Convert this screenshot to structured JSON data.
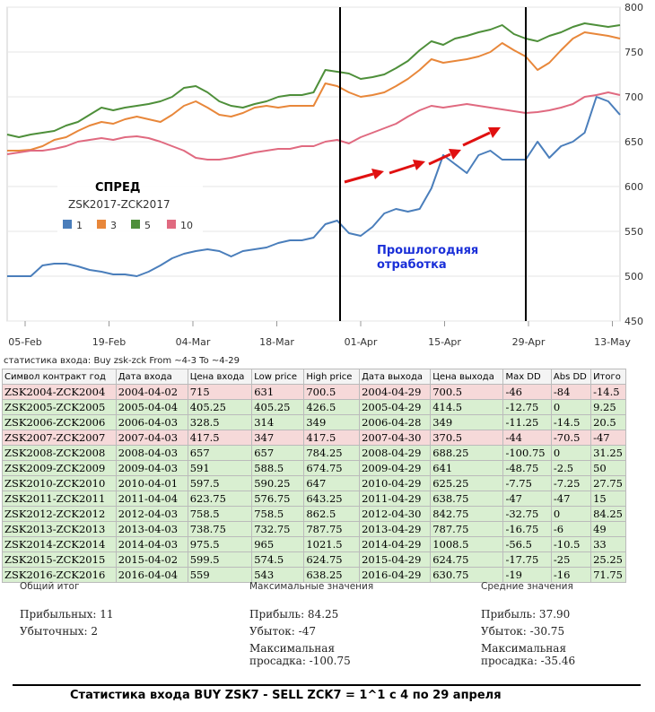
{
  "chart_data": {
    "type": "line",
    "x_labels": [
      "05-Feb",
      "19-Feb",
      "04-Mar",
      "18-Mar",
      "01-Apr",
      "15-Apr",
      "29-Apr",
      "13-May"
    ],
    "ylim": [
      450,
      800
    ],
    "yticks": [
      450,
      500,
      550,
      600,
      650,
      700,
      750,
      800
    ],
    "legend_title": "СПРЕД",
    "legend_subtitle": "ZSK2017-ZCK2017",
    "annotation": "Прошлогодняя отработка",
    "annotation_lines": [
      "Прошлогодняя",
      "отработка"
    ],
    "series": [
      {
        "name": "1",
        "color": "#4a7ebb",
        "values": [
          500,
          500,
          500,
          512,
          514,
          514,
          511,
          507,
          505,
          502,
          502,
          500,
          505,
          512,
          520,
          525,
          528,
          530,
          528,
          522,
          528,
          530,
          532,
          537,
          540,
          540,
          543,
          558,
          562,
          548,
          545,
          555,
          570,
          575,
          572,
          575,
          598,
          635,
          625,
          615,
          635,
          640,
          630,
          630,
          630,
          650,
          632,
          645,
          650,
          660,
          700,
          695,
          680
        ]
      },
      {
        "name": "3",
        "color": "#e8873a",
        "values": [
          640,
          640,
          641,
          645,
          652,
          655,
          662,
          668,
          672,
          670,
          675,
          678,
          675,
          672,
          680,
          690,
          695,
          688,
          680,
          678,
          682,
          688,
          690,
          688,
          690,
          690,
          690,
          715,
          712,
          705,
          700,
          702,
          705,
          712,
          720,
          730,
          742,
          738,
          740,
          742,
          745,
          750,
          760,
          752,
          745,
          730,
          738,
          752,
          765,
          772,
          770,
          768,
          765
        ]
      },
      {
        "name": "5",
        "color": "#4e8f3a",
        "values": [
          658,
          655,
          658,
          660,
          662,
          668,
          672,
          680,
          688,
          685,
          688,
          690,
          692,
          695,
          700,
          710,
          712,
          705,
          695,
          690,
          688,
          692,
          695,
          700,
          702,
          702,
          705,
          730,
          728,
          726,
          720,
          722,
          725,
          732,
          740,
          752,
          762,
          758,
          765,
          768,
          772,
          775,
          780,
          770,
          765,
          762,
          768,
          772,
          778,
          782,
          780,
          778,
          780
        ]
      },
      {
        "name": "10",
        "color": "#e06a80",
        "values": [
          636,
          638,
          640,
          640,
          642,
          645,
          650,
          652,
          654,
          652,
          655,
          656,
          654,
          650,
          645,
          640,
          632,
          630,
          630,
          632,
          635,
          638,
          640,
          642,
          642,
          645,
          645,
          650,
          652,
          648,
          655,
          660,
          665,
          670,
          678,
          685,
          690,
          688,
          690,
          692,
          690,
          688,
          686,
          684,
          682,
          683,
          685,
          688,
          692,
          700,
          702,
          705,
          702
        ]
      }
    ]
  },
  "stats_title": "статистика входа: Buy zsk-zck From ~4-3 To ~4-29",
  "table": {
    "headers": [
      "Символ контракт год",
      "Дата входа",
      "Цена входа",
      "Low price",
      "High price",
      "Дата выхода",
      "Цена выхода",
      "Max DD",
      "Abs DD",
      "Итого"
    ],
    "rows": [
      {
        "status": "loss",
        "cells": [
          "ZSK2004-ZCK2004",
          "2004-04-02",
          "715",
          "631",
          "700.5",
          "2004-04-29",
          "700.5",
          "-46",
          "-84",
          "-14.5"
        ]
      },
      {
        "status": "win",
        "cells": [
          "ZSK2005-ZCK2005",
          "2005-04-04",
          "405.25",
          "405.25",
          "426.5",
          "2005-04-29",
          "414.5",
          "-12.75",
          "0",
          "9.25"
        ]
      },
      {
        "status": "win",
        "cells": [
          "ZSK2006-ZCK2006",
          "2006-04-03",
          "328.5",
          "314",
          "349",
          "2006-04-28",
          "349",
          "-11.25",
          "-14.5",
          "20.5"
        ]
      },
      {
        "status": "loss",
        "cells": [
          "ZSK2007-ZCK2007",
          "2007-04-03",
          "417.5",
          "347",
          "417.5",
          "2007-04-30",
          "370.5",
          "-44",
          "-70.5",
          "-47"
        ]
      },
      {
        "status": "win",
        "cells": [
          "ZSK2008-ZCK2008",
          "2008-04-03",
          "657",
          "657",
          "784.25",
          "2008-04-29",
          "688.25",
          "-100.75",
          "0",
          "31.25"
        ]
      },
      {
        "status": "win",
        "cells": [
          "ZSK2009-ZCK2009",
          "2009-04-03",
          "591",
          "588.5",
          "674.75",
          "2009-04-29",
          "641",
          "-48.75",
          "-2.5",
          "50"
        ]
      },
      {
        "status": "win",
        "cells": [
          "ZSK2010-ZCK2010",
          "2010-04-01",
          "597.5",
          "590.25",
          "647",
          "2010-04-29",
          "625.25",
          "-7.75",
          "-7.25",
          "27.75"
        ]
      },
      {
        "status": "win",
        "cells": [
          "ZSK2011-ZCK2011",
          "2011-04-04",
          "623.75",
          "576.75",
          "643.25",
          "2011-04-29",
          "638.75",
          "-47",
          "-47",
          "15"
        ]
      },
      {
        "status": "win",
        "cells": [
          "ZSK2012-ZCK2012",
          "2012-04-03",
          "758.5",
          "758.5",
          "862.5",
          "2012-04-30",
          "842.75",
          "-32.75",
          "0",
          "84.25"
        ]
      },
      {
        "status": "win",
        "cells": [
          "ZSK2013-ZCK2013",
          "2013-04-03",
          "738.75",
          "732.75",
          "787.75",
          "2013-04-29",
          "787.75",
          "-16.75",
          "-6",
          "49"
        ]
      },
      {
        "status": "win",
        "cells": [
          "ZSK2014-ZCK2014",
          "2014-04-03",
          "975.5",
          "965",
          "1021.5",
          "2014-04-29",
          "1008.5",
          "-56.5",
          "-10.5",
          "33"
        ]
      },
      {
        "status": "win",
        "cells": [
          "ZSK2015-ZCK2015",
          "2015-04-02",
          "599.5",
          "574.5",
          "624.75",
          "2015-04-29",
          "624.75",
          "-17.75",
          "-25",
          "25.25"
        ]
      },
      {
        "status": "win",
        "cells": [
          "ZSK2016-ZCK2016",
          "2016-04-04",
          "559",
          "543",
          "638.25",
          "2016-04-29",
          "630.75",
          "-19",
          "-16",
          "71.75"
        ]
      }
    ]
  },
  "summary": {
    "total": {
      "title": "Общий итог",
      "profitable": "Прибыльных: 11",
      "losing": "Убыточных: 2"
    },
    "max": {
      "title": "Максимальные значения",
      "profit": "Прибыль: 84.25",
      "loss": "Убыток: -47",
      "dd1": "Максимальная",
      "dd2": "просадка: -100.75"
    },
    "avg": {
      "title": "Средние значения",
      "profit": "Прибыль: 37.90",
      "loss": "Убыток: -30.75",
      "dd1": "Максимальная",
      "dd2": "просадка: -35.46"
    }
  },
  "footer": "Статистика входа BUY  ZSK7 - SELL ZCK7 = 1^1  с 4 по 29 апреля"
}
